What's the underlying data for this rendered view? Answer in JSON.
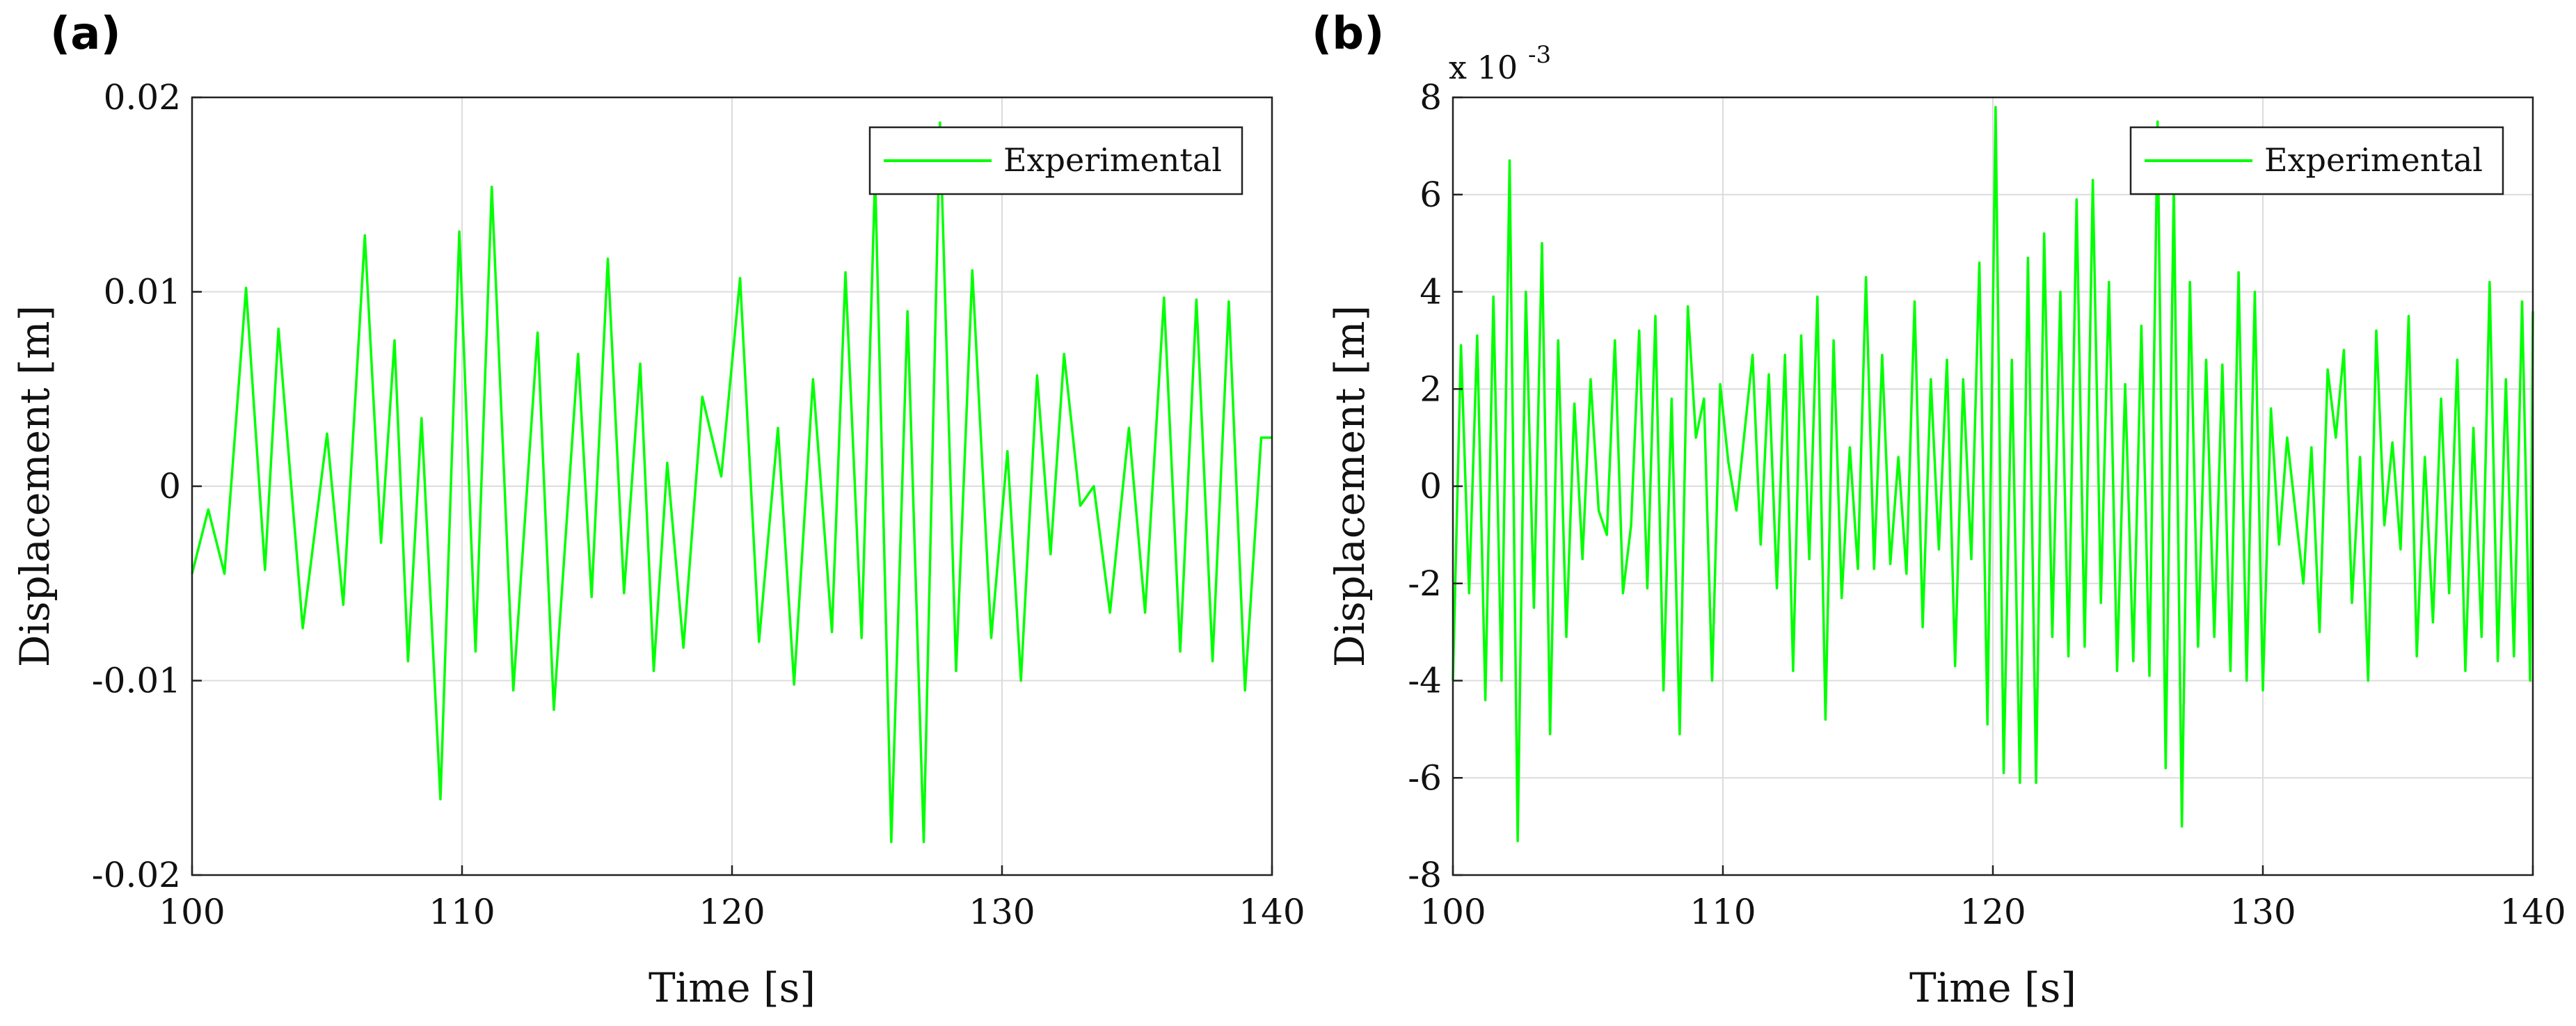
{
  "colors": {
    "series": "#00ff00",
    "axis": "#222222",
    "grid": "#dcdcdc"
  },
  "chart_data": [
    {
      "panel_label": "(a)",
      "type": "line",
      "title": "",
      "xlabel": "Time [s]",
      "ylabel": "Displacement [m]",
      "xlim": [
        100,
        140
      ],
      "ylim": [
        -0.02,
        0.02
      ],
      "xticks": [
        100,
        110,
        120,
        130,
        140
      ],
      "xtick_labels": [
        "100",
        "110",
        "120",
        "130",
        "140"
      ],
      "yticks": [
        -0.02,
        -0.01,
        0,
        0.01,
        0.02
      ],
      "ytick_labels": [
        "-0.02",
        "-0.01",
        "0",
        "0.01",
        "0.02"
      ],
      "exponent_label": "",
      "grid": true,
      "legend": {
        "position": "top-right",
        "entries": [
          "Experimental"
        ]
      },
      "series": [
        {
          "name": "Experimental",
          "x": [
            100,
            100.6,
            101.2,
            102,
            102.7,
            103.2,
            104.1,
            105,
            105.6,
            106.4,
            107,
            107.5,
            108,
            108.5,
            109.2,
            109.9,
            110.5,
            111.1,
            111.9,
            112.8,
            113.4,
            114.3,
            114.8,
            115.4,
            116,
            116.6,
            117.1,
            117.6,
            118.2,
            118.9,
            119.6,
            120.3,
            121,
            121.7,
            122.3,
            123,
            123.7,
            124.2,
            124.8,
            125.3,
            125.9,
            126.5,
            127.1,
            127.7,
            128.3,
            128.9,
            129.6,
            130.2,
            130.7,
            131.3,
            131.8,
            132.3,
            132.9,
            133.4,
            134,
            134.7,
            135.3,
            136,
            136.6,
            137.2,
            137.8,
            138.4,
            139,
            139.6,
            140
          ],
          "y": [
            -0.0045,
            -0.0012,
            -0.0045,
            0.0102,
            -0.0043,
            0.0081,
            -0.0073,
            0.0027,
            -0.0061,
            0.0129,
            -0.0029,
            0.0075,
            -0.009,
            0.0035,
            -0.0161,
            0.0131,
            -0.0085,
            0.0154,
            -0.0105,
            0.0079,
            -0.0115,
            0.0068,
            -0.0057,
            0.0117,
            -0.0055,
            0.0063,
            -0.0095,
            0.0012,
            -0.0083,
            0.0046,
            0.0005,
            0.0107,
            -0.008,
            0.003,
            -0.0102,
            0.0055,
            -0.0075,
            0.011,
            -0.0078,
            0.016,
            -0.0183,
            0.009,
            -0.0183,
            0.0187,
            -0.0095,
            0.0111,
            -0.0078,
            0.0018,
            -0.01,
            0.0057,
            -0.0035,
            0.0068,
            -0.001,
            0.0,
            -0.0065,
            0.003,
            -0.0065,
            0.0097,
            -0.0085,
            0.0096,
            -0.009,
            0.0095,
            -0.0105,
            0.0025,
            0.0025
          ]
        }
      ]
    },
    {
      "panel_label": "(b)",
      "type": "line",
      "title": "",
      "xlabel": "Time [s]",
      "ylabel": "Displacement [m]",
      "xlim": [
        100,
        140
      ],
      "ylim": [
        -8,
        8
      ],
      "xticks": [
        100,
        110,
        120,
        130,
        140
      ],
      "xtick_labels": [
        "100",
        "110",
        "120",
        "130",
        "140"
      ],
      "yticks": [
        -8,
        -6,
        -4,
        -2,
        0,
        2,
        4,
        6,
        8
      ],
      "ytick_labels": [
        "-8",
        "-6",
        "-4",
        "-2",
        "0",
        "2",
        "4",
        "6",
        "8"
      ],
      "exponent_label": "x 10",
      "exponent_power": "-3",
      "grid": true,
      "legend": {
        "position": "top-right",
        "entries": [
          "Experimental"
        ]
      },
      "series": [
        {
          "name": "Experimental",
          "x": [
            100,
            100.3,
            100.6,
            100.9,
            101.2,
            101.5,
            101.8,
            102.1,
            102.4,
            102.7,
            103,
            103.3,
            103.6,
            103.9,
            104.2,
            104.5,
            104.8,
            105.1,
            105.4,
            105.7,
            106,
            106.3,
            106.6,
            106.9,
            107.2,
            107.5,
            107.8,
            108.1,
            108.4,
            108.7,
            109,
            109.3,
            109.6,
            109.9,
            110.2,
            110.5,
            110.8,
            111.1,
            111.4,
            111.7,
            112,
            112.3,
            112.6,
            112.9,
            113.2,
            113.5,
            113.8,
            114.1,
            114.4,
            114.7,
            115,
            115.3,
            115.6,
            115.9,
            116.2,
            116.5,
            116.8,
            117.1,
            117.4,
            117.7,
            118,
            118.3,
            118.6,
            118.9,
            119.2,
            119.5,
            119.8,
            120.1,
            120.4,
            120.7,
            121,
            121.3,
            121.6,
            121.9,
            122.2,
            122.5,
            122.8,
            123.1,
            123.4,
            123.7,
            124,
            124.3,
            124.6,
            124.9,
            125.2,
            125.5,
            125.8,
            126.1,
            126.4,
            126.7,
            127,
            127.3,
            127.6,
            127.9,
            128.2,
            128.5,
            128.8,
            129.1,
            129.4,
            129.7,
            130,
            130.3,
            130.6,
            130.9,
            131.2,
            131.5,
            131.8,
            132.1,
            132.4,
            132.7,
            133,
            133.3,
            133.6,
            133.9,
            134.2,
            134.5,
            134.8,
            135.1,
            135.4,
            135.7,
            136,
            136.3,
            136.6,
            136.9,
            137.2,
            137.5,
            137.8,
            138.1,
            138.4,
            138.7,
            139,
            139.3,
            139.6,
            139.9,
            140
          ],
          "y": [
            -4,
            2.9,
            -2.2,
            3.1,
            -4.4,
            3.9,
            -4,
            6.7,
            -7.3,
            4,
            -2.5,
            5,
            -5.1,
            3,
            -3.1,
            1.7,
            -1.5,
            2.2,
            -0.5,
            -1,
            3,
            -2.2,
            -0.8,
            3.2,
            -2.1,
            3.5,
            -4.2,
            1.8,
            -5.1,
            3.7,
            1,
            1.8,
            -4,
            2.1,
            0.5,
            -0.5,
            1.1,
            2.7,
            -1.2,
            2.3,
            -2.1,
            2.7,
            -3.8,
            3.1,
            -1.5,
            3.9,
            -4.8,
            3,
            -2.3,
            0.8,
            -1.7,
            4.3,
            -1.7,
            2.7,
            -1.6,
            0.6,
            -1.8,
            3.8,
            -2.9,
            2.2,
            -1.3,
            2.6,
            -3.7,
            2.2,
            -1.5,
            4.6,
            -4.9,
            7.8,
            -5.9,
            2.6,
            -6.1,
            4.7,
            -6.1,
            5.2,
            -3.1,
            4,
            -3.5,
            5.9,
            -3.3,
            6.3,
            -2.4,
            4.2,
            -3.8,
            2.1,
            -3.6,
            3.3,
            -3.9,
            7.5,
            -5.8,
            6.2,
            -7,
            4.2,
            -3.3,
            2.6,
            -3.1,
            2.5,
            -3.8,
            4.4,
            -4.0,
            4.0,
            -4.2,
            1.6,
            -1.2,
            1.0,
            -0.5,
            -2,
            0.8,
            -3,
            2.4,
            1,
            2.8,
            -2.4,
            0.6,
            -4,
            3.2,
            -0.8,
            0.9,
            -1.3,
            3.5,
            -3.5,
            0.6,
            -2.8,
            1.8,
            -2.2,
            2.6,
            -3.8,
            1.2,
            -3.1,
            4.2,
            -3.6,
            2.2,
            -3.5,
            3.8,
            -4.0,
            3.6
          ]
        }
      ]
    }
  ]
}
